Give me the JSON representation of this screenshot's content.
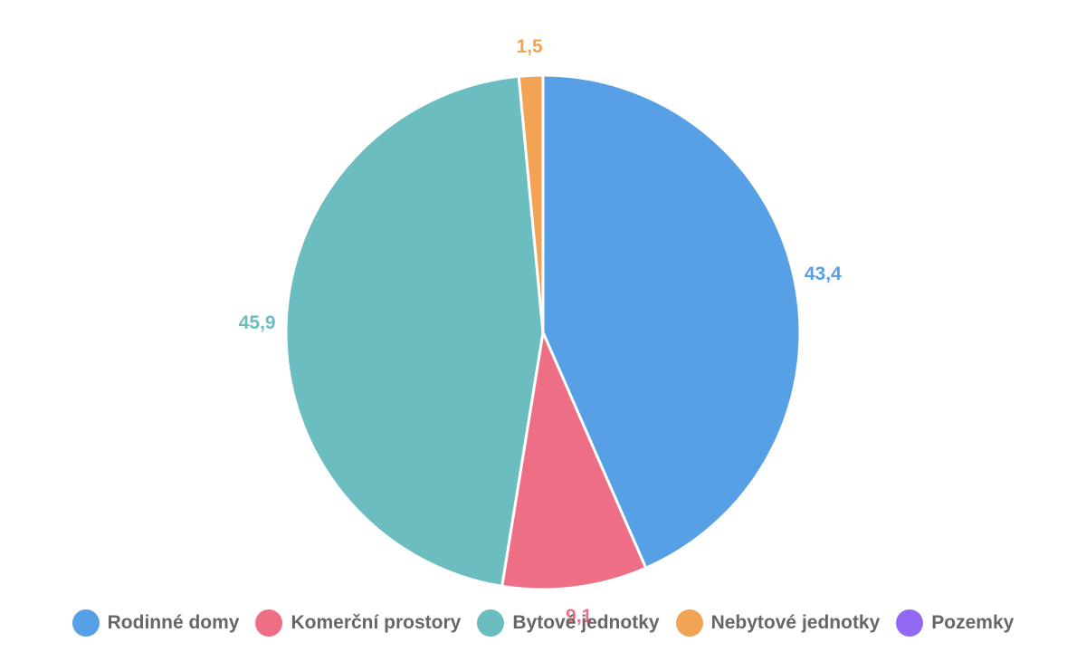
{
  "chart_data": {
    "type": "pie",
    "categories": [
      "Rodinné domy",
      "Komerční prostory",
      "Bytové jednotky",
      "Nebytové jednotky",
      "Pozemky"
    ],
    "values": [
      43.4,
      9.1,
      45.9,
      1.5,
      0
    ],
    "value_labels": [
      "43,4",
      "9,1",
      "45,9",
      "1,5",
      ""
    ],
    "colors": [
      "#57a0e5",
      "#ed6e85",
      "#6cbdbf",
      "#f2a354",
      "#9269f5"
    ],
    "legend_position": "bottom"
  }
}
